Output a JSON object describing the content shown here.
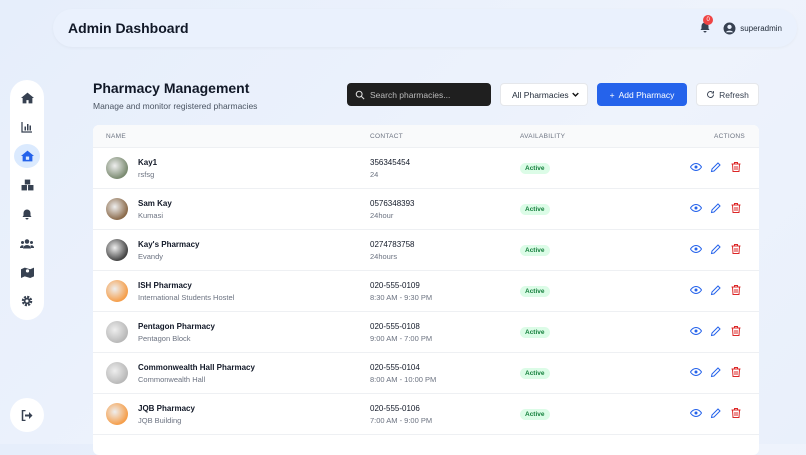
{
  "header": {
    "title": "Admin Dashboard",
    "notification_count": "0",
    "username": "superadmin"
  },
  "sidebar": {
    "items": [
      {
        "icon": "home-icon"
      },
      {
        "icon": "chart-bar-icon"
      },
      {
        "icon": "pharmacy-house-icon",
        "active": true
      },
      {
        "icon": "boxes-icon"
      },
      {
        "icon": "bell-icon"
      },
      {
        "icon": "users-icon"
      },
      {
        "icon": "map-icon"
      },
      {
        "icon": "gear-icon"
      }
    ],
    "logout_icon": "logout-icon"
  },
  "page": {
    "title": "Pharmacy Management",
    "subtitle": "Manage and monitor registered pharmacies"
  },
  "toolbar": {
    "search_placeholder": "Search pharmacies...",
    "filter_value": "All Pharmacies",
    "add_label": "Add Pharmacy",
    "refresh_label": "Refresh",
    "accent": "#2563eb"
  },
  "table": {
    "columns": [
      "NAME",
      "CONTACT",
      "AVAILABILITY",
      "ACTIONS"
    ],
    "rows": [
      {
        "name": "Kay1",
        "location": "rsfsg",
        "phone": "356345454",
        "hours": "24",
        "status": "Active",
        "avatar": "#7a8a70"
      },
      {
        "name": "Sam Kay",
        "location": "Kumasi",
        "phone": "0576348393",
        "hours": "24hour",
        "status": "Active",
        "avatar": "#8a6a4a"
      },
      {
        "name": "Kay's Pharmacy",
        "location": "Evandy",
        "phone": "0274783758",
        "hours": "24hours",
        "status": "Active",
        "avatar": "#444444"
      },
      {
        "name": "ISH Pharmacy",
        "location": "International Students Hostel",
        "phone": "020-555-0109",
        "hours": "8:30 AM - 9:30 PM",
        "status": "Active",
        "avatar": "#f59e4a"
      },
      {
        "name": "Pentagon Pharmacy",
        "location": "Pentagon Block",
        "phone": "020-555-0108",
        "hours": "9:00 AM - 7:00 PM",
        "status": "Active",
        "avatar": "#b8b8b8"
      },
      {
        "name": "Commonwealth Hall Pharmacy",
        "location": "Commonwealth Hall",
        "phone": "020-555-0104",
        "hours": "8:00 AM - 10:00 PM",
        "status": "Active",
        "avatar": "#b8b8b8"
      },
      {
        "name": "JQB Pharmacy",
        "location": "JQB Building",
        "phone": "020-555-0106",
        "hours": "7:00 AM - 9:00 PM",
        "status": "Active",
        "avatar": "#f59e4a"
      }
    ]
  }
}
